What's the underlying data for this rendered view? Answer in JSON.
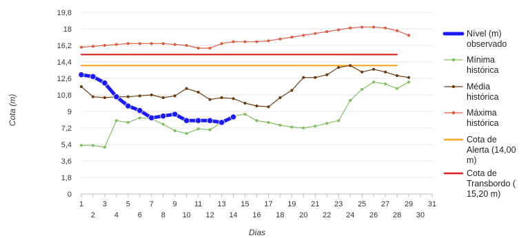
{
  "chart_data": {
    "type": "line",
    "xlabel": "Dias",
    "ylabel": "Cota (m)",
    "xlim": [
      1,
      31
    ],
    "ylim": [
      0,
      19.8
    ],
    "x_ticks": [
      1,
      2,
      3,
      4,
      5,
      6,
      7,
      8,
      9,
      10,
      11,
      12,
      13,
      14,
      15,
      16,
      17,
      18,
      19,
      20,
      21,
      22,
      23,
      24,
      25,
      26,
      27,
      28,
      29,
      30,
      31
    ],
    "y_ticks": [
      "0",
      "1,8",
      "3,6",
      "5,4",
      "7,2",
      "9",
      "10,8",
      "12,6",
      "14,4",
      "16,2",
      "18",
      "19,8"
    ],
    "grid": true,
    "legend_position": "right",
    "series": [
      {
        "name": "Nível (m) observado",
        "legend_lines": [
          "Nível (m)",
          "observado"
        ],
        "color": "#1a1aff",
        "x": [
          1,
          2,
          3,
          4,
          5,
          6,
          7,
          8,
          9,
          10,
          11,
          12,
          13,
          14
        ],
        "values": [
          13.0,
          12.8,
          12.1,
          10.6,
          9.6,
          9.1,
          8.3,
          8.5,
          8.7,
          8.0,
          8.0,
          8.0,
          7.8,
          8.4
        ]
      },
      {
        "name": "Mínima histórica",
        "legend_lines": [
          "Mínima",
          "histórica"
        ],
        "color": "#7fbf5f",
        "x": [
          1,
          2,
          3,
          4,
          5,
          6,
          7,
          8,
          9,
          10,
          11,
          12,
          13,
          14,
          15,
          16,
          17,
          18,
          19,
          20,
          21,
          22,
          23,
          24,
          25,
          26,
          27,
          28,
          29
        ],
        "values": [
          5.3,
          5.3,
          5.1,
          8.0,
          7.8,
          8.3,
          8.2,
          7.6,
          6.9,
          6.6,
          7.1,
          7.0,
          7.8,
          8.5,
          8.7,
          8.0,
          7.8,
          7.5,
          7.3,
          7.2,
          7.4,
          7.7,
          8.0,
          10.2,
          11.4,
          12.2,
          12.0,
          11.5,
          12.2
        ]
      },
      {
        "name": "Média histórica",
        "legend_lines": [
          "Média",
          "histórica"
        ],
        "color": "#6b3a10",
        "x": [
          1,
          2,
          3,
          4,
          5,
          6,
          7,
          8,
          9,
          10,
          11,
          12,
          13,
          14,
          15,
          16,
          17,
          18,
          19,
          20,
          21,
          22,
          23,
          24,
          25,
          26,
          27,
          28,
          29
        ],
        "values": [
          11.7,
          10.6,
          10.5,
          10.6,
          10.6,
          10.7,
          10.8,
          10.5,
          10.7,
          11.5,
          11.1,
          10.3,
          10.5,
          10.4,
          9.9,
          9.6,
          9.5,
          10.5,
          11.3,
          12.7,
          12.7,
          13.0,
          13.8,
          14.0,
          13.3,
          13.6,
          13.3,
          12.9,
          12.7
        ]
      },
      {
        "name": "Máxima histórica",
        "legend_lines": [
          "Máxima",
          "histórica"
        ],
        "color": "#e05a40",
        "x": [
          1,
          2,
          3,
          4,
          5,
          6,
          7,
          8,
          9,
          10,
          11,
          12,
          13,
          14,
          15,
          16,
          17,
          18,
          19,
          20,
          21,
          22,
          23,
          24,
          25,
          26,
          27,
          28,
          29
        ],
        "values": [
          16.0,
          16.1,
          16.2,
          16.3,
          16.4,
          16.4,
          16.4,
          16.4,
          16.3,
          16.2,
          15.9,
          15.9,
          16.4,
          16.6,
          16.6,
          16.6,
          16.7,
          16.9,
          17.1,
          17.3,
          17.5,
          17.7,
          17.9,
          18.1,
          18.2,
          18.2,
          18.1,
          17.8,
          17.3
        ]
      },
      {
        "name": "Cota de Alerta (14,00 m)",
        "legend_lines": [
          "Cota de",
          "Alerta (14,00",
          "m)"
        ],
        "color": "#f5a623",
        "x": [
          1,
          28
        ],
        "values": [
          14.0,
          14.0
        ]
      },
      {
        "name": "Cota de Transbordo ( 15,20 m)",
        "legend_lines": [
          "Cota de",
          "Transbordo (",
          "15,20 m)"
        ],
        "color": "#e02020",
        "x": [
          1,
          28
        ],
        "values": [
          15.2,
          15.2
        ]
      }
    ]
  }
}
